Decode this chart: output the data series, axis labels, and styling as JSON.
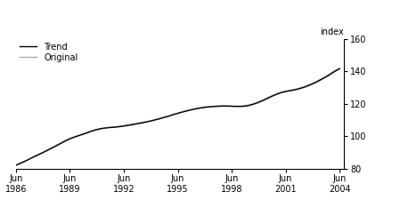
{
  "title": "",
  "ylabel": "index",
  "ylim": [
    80,
    160
  ],
  "yticks": [
    80,
    100,
    120,
    140,
    160
  ],
  "xtick_years": [
    1986,
    1989,
    1992,
    1995,
    1998,
    2001,
    2004
  ],
  "xtick_labels": [
    "Jun\n1986",
    "Jun\n1989",
    "Jun\n1992",
    "Jun\n1995",
    "Jun\n1998",
    "Jun\n2001",
    "Jun\n2004"
  ],
  "trend_color": "#000000",
  "original_color": "#aaaaaa",
  "background_color": "#ffffff",
  "legend_trend": "Trend",
  "legend_original": "Original",
  "trend_data": [
    [
      1986.5,
      82.0
    ],
    [
      1986.75,
      83.2
    ],
    [
      1987.0,
      84.5
    ],
    [
      1987.25,
      85.8
    ],
    [
      1987.5,
      87.2
    ],
    [
      1987.75,
      88.5
    ],
    [
      1988.0,
      89.8
    ],
    [
      1988.25,
      91.2
    ],
    [
      1988.5,
      92.6
    ],
    [
      1988.75,
      94.0
    ],
    [
      1989.0,
      95.5
    ],
    [
      1989.25,
      97.0
    ],
    [
      1989.5,
      98.3
    ],
    [
      1989.75,
      99.4
    ],
    [
      1990.0,
      100.3
    ],
    [
      1990.25,
      101.2
    ],
    [
      1990.5,
      102.2
    ],
    [
      1990.75,
      103.2
    ],
    [
      1991.0,
      104.0
    ],
    [
      1991.25,
      104.6
    ],
    [
      1991.5,
      105.0
    ],
    [
      1991.75,
      105.3
    ],
    [
      1992.0,
      105.5
    ],
    [
      1992.25,
      105.8
    ],
    [
      1992.5,
      106.2
    ],
    [
      1992.75,
      106.6
    ],
    [
      1993.0,
      107.1
    ],
    [
      1993.25,
      107.6
    ],
    [
      1993.5,
      108.1
    ],
    [
      1993.75,
      108.7
    ],
    [
      1994.0,
      109.3
    ],
    [
      1994.25,
      110.0
    ],
    [
      1994.5,
      110.7
    ],
    [
      1994.75,
      111.5
    ],
    [
      1995.0,
      112.3
    ],
    [
      1995.25,
      113.2
    ],
    [
      1995.5,
      114.0
    ],
    [
      1995.75,
      114.8
    ],
    [
      1996.0,
      115.5
    ],
    [
      1996.25,
      116.2
    ],
    [
      1996.5,
      116.8
    ],
    [
      1996.75,
      117.3
    ],
    [
      1997.0,
      117.7
    ],
    [
      1997.25,
      118.0
    ],
    [
      1997.5,
      118.2
    ],
    [
      1997.75,
      118.4
    ],
    [
      1998.0,
      118.5
    ],
    [
      1998.25,
      118.5
    ],
    [
      1998.5,
      118.4
    ],
    [
      1998.75,
      118.3
    ],
    [
      1999.0,
      118.3
    ],
    [
      1999.25,
      118.5
    ],
    [
      1999.5,
      119.0
    ],
    [
      1999.75,
      119.8
    ],
    [
      2000.0,
      120.8
    ],
    [
      2000.25,
      122.0
    ],
    [
      2000.5,
      123.3
    ],
    [
      2000.75,
      124.6
    ],
    [
      2001.0,
      125.8
    ],
    [
      2001.25,
      126.8
    ],
    [
      2001.5,
      127.5
    ],
    [
      2001.75,
      128.0
    ],
    [
      2002.0,
      128.5
    ],
    [
      2002.25,
      129.2
    ],
    [
      2002.5,
      130.0
    ],
    [
      2002.75,
      131.0
    ],
    [
      2003.0,
      132.2
    ],
    [
      2003.25,
      133.5
    ],
    [
      2003.5,
      135.0
    ],
    [
      2003.75,
      136.5
    ],
    [
      2004.0,
      138.2
    ],
    [
      2004.25,
      140.0
    ],
    [
      2004.5,
      141.5
    ]
  ],
  "original_data": [
    [
      1986.5,
      82.0
    ],
    [
      1986.75,
      83.5
    ],
    [
      1987.0,
      84.3
    ],
    [
      1987.25,
      86.0
    ],
    [
      1987.5,
      87.5
    ],
    [
      1987.75,
      88.8
    ],
    [
      1988.0,
      90.0
    ],
    [
      1988.25,
      91.5
    ],
    [
      1988.5,
      93.0
    ],
    [
      1988.75,
      94.5
    ],
    [
      1989.0,
      95.8
    ],
    [
      1989.25,
      97.5
    ],
    [
      1989.5,
      98.5
    ],
    [
      1989.75,
      99.5
    ],
    [
      1990.0,
      100.5
    ],
    [
      1990.25,
      101.5
    ],
    [
      1990.5,
      102.5
    ],
    [
      1990.75,
      103.5
    ],
    [
      1991.0,
      104.2
    ],
    [
      1991.25,
      104.8
    ],
    [
      1991.5,
      105.2
    ],
    [
      1991.75,
      105.5
    ],
    [
      1992.0,
      105.6
    ],
    [
      1992.25,
      106.0
    ],
    [
      1992.5,
      106.5
    ],
    [
      1992.75,
      107.0
    ],
    [
      1993.0,
      107.5
    ],
    [
      1993.25,
      108.0
    ],
    [
      1993.5,
      108.5
    ],
    [
      1993.75,
      109.0
    ],
    [
      1994.0,
      109.5
    ],
    [
      1994.25,
      110.2
    ],
    [
      1994.5,
      111.0
    ],
    [
      1994.75,
      111.8
    ],
    [
      1995.0,
      112.5
    ],
    [
      1995.25,
      113.5
    ],
    [
      1995.5,
      114.2
    ],
    [
      1995.75,
      115.0
    ],
    [
      1996.0,
      115.8
    ],
    [
      1996.25,
      116.4
    ],
    [
      1996.5,
      117.0
    ],
    [
      1996.75,
      117.5
    ],
    [
      1997.0,
      118.0
    ],
    [
      1997.25,
      118.3
    ],
    [
      1997.5,
      118.5
    ],
    [
      1997.75,
      118.6
    ],
    [
      1998.0,
      118.7
    ],
    [
      1998.25,
      118.7
    ],
    [
      1998.5,
      118.6
    ],
    [
      1998.75,
      118.5
    ],
    [
      1999.0,
      118.5
    ],
    [
      1999.25,
      118.8
    ],
    [
      1999.5,
      119.3
    ],
    [
      1999.75,
      120.2
    ],
    [
      2000.0,
      121.2
    ],
    [
      2000.25,
      122.5
    ],
    [
      2000.5,
      123.8
    ],
    [
      2000.75,
      125.0
    ],
    [
      2001.0,
      126.2
    ],
    [
      2001.25,
      127.2
    ],
    [
      2001.5,
      127.8
    ],
    [
      2001.75,
      128.3
    ],
    [
      2002.0,
      128.8
    ],
    [
      2002.25,
      129.5
    ],
    [
      2002.5,
      130.5
    ],
    [
      2002.75,
      131.5
    ],
    [
      2003.0,
      132.8
    ],
    [
      2003.25,
      134.0
    ],
    [
      2003.5,
      135.5
    ],
    [
      2003.75,
      137.0
    ],
    [
      2004.0,
      138.8
    ],
    [
      2004.25,
      140.5
    ],
    [
      2004.5,
      142.0
    ]
  ]
}
